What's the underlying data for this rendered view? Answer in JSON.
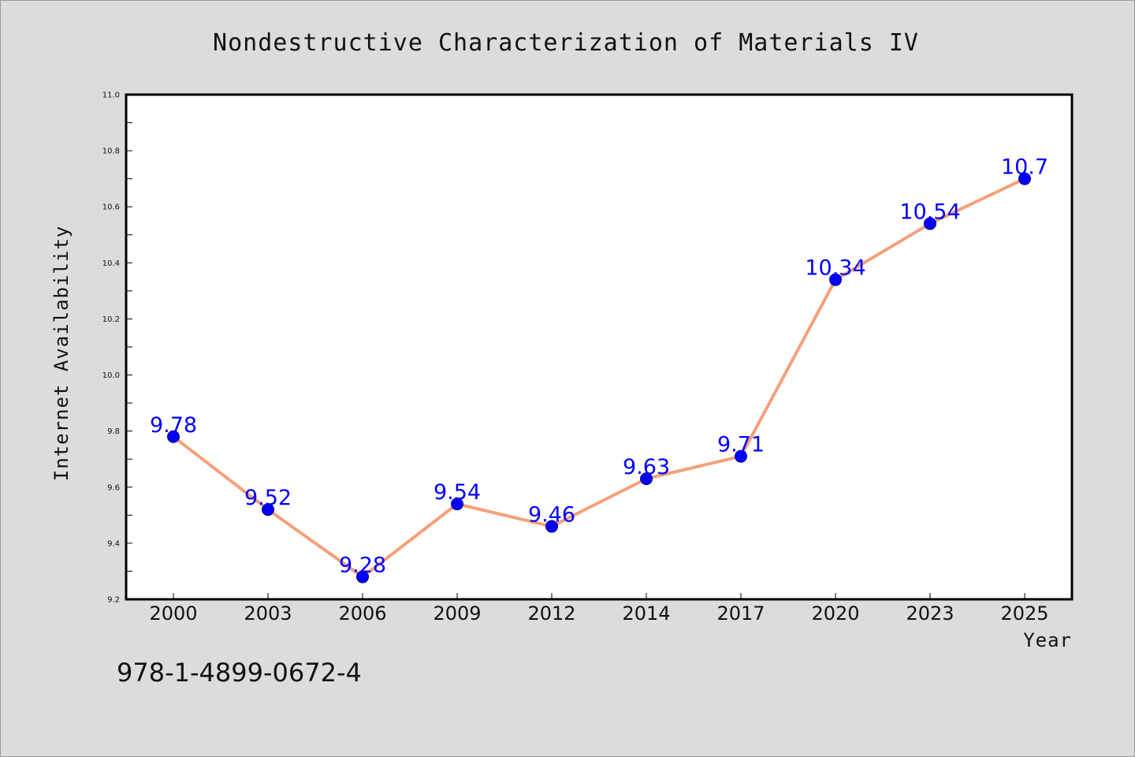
{
  "chart_data": {
    "type": "line",
    "title": "Nondestructive Characterization of Materials IV",
    "xlabel": "Year",
    "ylabel": "Internet Availability",
    "categories": [
      "2000",
      "2003",
      "2006",
      "2009",
      "2012",
      "2014",
      "2017",
      "2020",
      "2023",
      "2025"
    ],
    "series": [
      {
        "values": [
          9.78,
          9.52,
          9.28,
          9.54,
          9.46,
          9.63,
          9.71,
          10.34,
          10.54,
          10.7
        ],
        "labels": [
          "9.78",
          "9.52",
          "9.28",
          "9.54",
          "9.46",
          "9.63",
          "9.71",
          "10.34",
          "10.54",
          "10.7"
        ]
      }
    ],
    "ylim": [
      9.2,
      11.0
    ],
    "yticks": [
      "9.2",
      "9.4",
      "9.6",
      "9.8",
      "10.0",
      "10.2",
      "10.4",
      "10.6",
      "10.8",
      "11.0"
    ],
    "grid": false,
    "line_color": "#f4a07a",
    "marker_color": "#0000ff",
    "label_color": "#0000ff",
    "background_color": "#dcdcdc",
    "plot_background_color": "#ffffff"
  },
  "footer_text": "978-1-4899-0672-4"
}
